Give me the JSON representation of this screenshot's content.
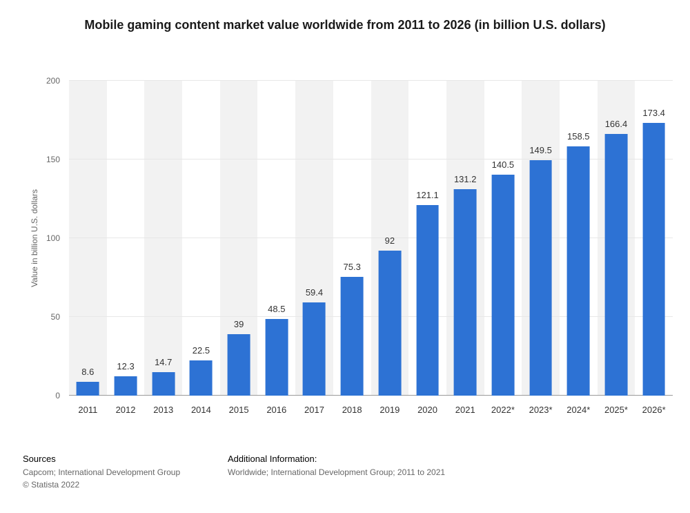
{
  "title": "Mobile gaming content market value worldwide from 2011 to 2026 (in billion U.S. dollars)",
  "chart_data": {
    "type": "bar",
    "title": "Mobile gaming content market value worldwide from 2011 to 2026 (in billion U.S. dollars)",
    "categories": [
      "2011",
      "2012",
      "2013",
      "2014",
      "2015",
      "2016",
      "2017",
      "2018",
      "2019",
      "2020",
      "2021",
      "2022*",
      "2023*",
      "2024*",
      "2025*",
      "2026*"
    ],
    "values": [
      8.6,
      12.3,
      14.7,
      22.5,
      39,
      48.5,
      59.4,
      75.3,
      92,
      121.1,
      131.2,
      140.5,
      149.5,
      158.5,
      166.4,
      173.4
    ],
    "xlabel": "",
    "ylabel": "Value in billion U.S. dollars",
    "ylim": [
      0,
      200
    ],
    "yticks": [
      0,
      50,
      100,
      150,
      200
    ],
    "grid": true,
    "legend": false,
    "bar_color": "#2d72d4",
    "band_color": "#f2f2f2"
  },
  "footer": {
    "sources_label": "Sources",
    "sources_text": "Capcom; International Development Group",
    "copyright": "© Statista 2022",
    "additional_label": "Additional Information:",
    "additional_text": "Worldwide; International Development Group; 2011 to 2021"
  }
}
